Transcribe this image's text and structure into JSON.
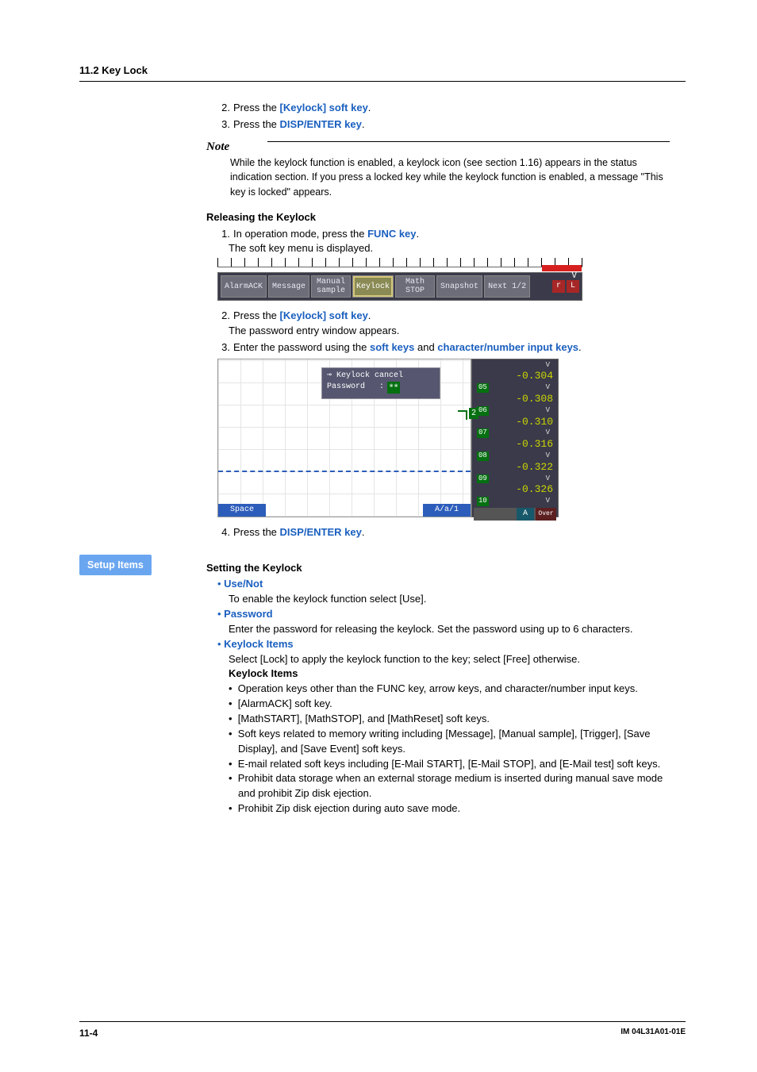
{
  "header": {
    "section": "11.2  Key Lock"
  },
  "intro_steps": [
    {
      "n": "2.",
      "pre": "Press the ",
      "key": "[Keylock] soft key",
      "post": "."
    },
    {
      "n": "3.",
      "pre": "Press the ",
      "key": "DISP/ENTER key",
      "post": "."
    }
  ],
  "note": {
    "label": "Note",
    "body": "While the keylock function is enabled, a keylock icon (see section 1.16) appears in the status indication section.  If you press a locked key while the keylock function is enabled, a message \"This key is locked\" appears."
  },
  "releasing": {
    "title": "Releasing the Keylock",
    "step1_a": "In operation mode, press the ",
    "step1_key": "FUNC key",
    "step1_b": ".",
    "step1_sub": "The soft key menu is displayed.",
    "step2_a": "Press the ",
    "step2_key": "[Keylock] soft key",
    "step2_b": ".",
    "step2_sub": "The password entry window appears.",
    "step3_a": "Enter the password using the ",
    "step3_key1": "soft keys",
    "step3_mid": " and ",
    "step3_key2": "character/number input keys",
    "step3_b": ".",
    "step4_a": "Press the ",
    "step4_key": "DISP/ENTER key",
    "step4_b": "."
  },
  "softkeys": {
    "items": [
      "AlarmACK",
      "Message",
      "Manual\nsample",
      "Keylock",
      "Math\nSTOP",
      "Snapshot",
      "Next 1/2"
    ],
    "highlight_index": 3,
    "right_buttons": [
      "r",
      "L"
    ],
    "v": "V",
    "bg_color": "#3a3a4a",
    "btn_color": "#6d6d7a",
    "highlight_color": "#8a8a55"
  },
  "dialog": {
    "title": "Keylock cancel",
    "field_label": "Password",
    "field_value": "∗∗",
    "space_label": "Space",
    "mode_label": "A/a/1",
    "marker": "2"
  },
  "values": {
    "rows": [
      {
        "tag": "",
        "val": "-0.304",
        "unit": "V"
      },
      {
        "tag": "05",
        "val": "-0.308",
        "unit": "V"
      },
      {
        "tag": "06",
        "val": "-0.310",
        "unit": "V"
      },
      {
        "tag": "07",
        "val": "-0.316",
        "unit": "V"
      },
      {
        "tag": "08",
        "val": "-0.322",
        "unit": "V"
      },
      {
        "tag": "09",
        "val": "-0.326",
        "unit": "V"
      },
      {
        "tag": "10",
        "val": "",
        "unit": "V"
      }
    ],
    "value_color": "#cbd600",
    "tag_bg": "#047010",
    "bar": {
      "a": "A",
      "over": "Over"
    }
  },
  "setup": {
    "badge": "Setup Items",
    "title": "Setting the Keylock",
    "items": [
      {
        "head": "Use/Not",
        "body": "To enable the keylock function select [Use]."
      },
      {
        "head": "Password",
        "body": "Enter the password for releasing the keylock.  Set the password using up to 6 characters."
      },
      {
        "head": "Keylock Items",
        "body": "Select [Lock] to apply the keylock function to the key; select [Free] otherwise."
      }
    ],
    "keylock_sub_title": "Keylock Items",
    "keylock_bullets": [
      "Operation keys other than the FUNC key, arrow keys, and character/number input keys.",
      "[AlarmACK] soft key.",
      "[MathSTART], [MathSTOP], and [MathReset] soft keys.",
      "Soft keys related to memory writing including [Message], [Manual sample], [Trigger], [Save Display], and [Save Event] soft keys.",
      "E-mail related soft keys including [E-Mail START], [E-Mail STOP], and [E-Mail test] soft keys.",
      "Prohibit data storage when an external storage medium is inserted during manual save mode and prohibit Zip disk ejection.",
      "Prohibit Zip disk ejection during auto save mode."
    ]
  },
  "footer": {
    "page": "11-4",
    "doc": "IM 04L31A01-01E"
  }
}
